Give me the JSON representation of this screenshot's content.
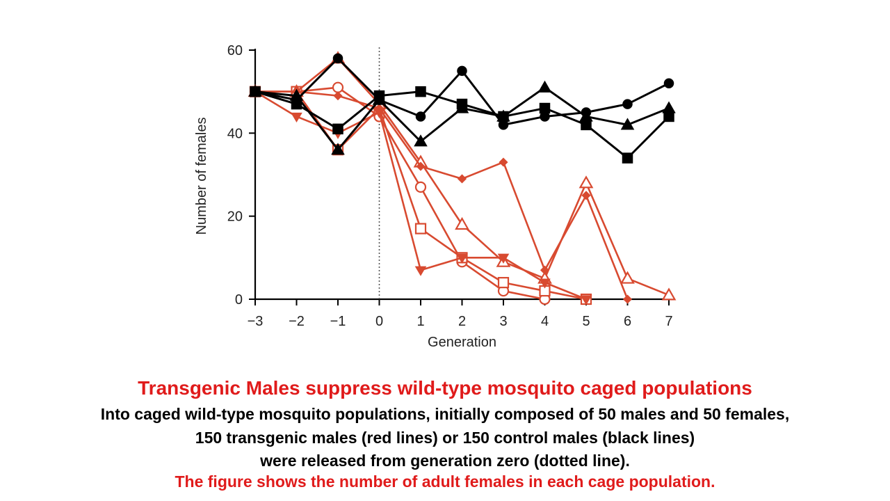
{
  "colors": {
    "treatment": "#d84a30",
    "control": "#000000",
    "highlight": "#e01b1b"
  },
  "caption": {
    "title": "Transgenic Males suppress wild-type mosquito caged populations",
    "line1": "Into caged wild-type mosquito populations, initially composed of 50 males and 50 females,",
    "line2": "150 transgenic males (red lines) or 150 control males (black lines)",
    "line3": "were released from generation zero (dotted line).",
    "line4": "The figure shows the number of adult females in each cage population."
  },
  "chart_data": {
    "type": "line",
    "xlabel": "Generation",
    "ylabel": "Number of females",
    "xlim": [
      -3,
      7
    ],
    "ylim": [
      0,
      60
    ],
    "xticks": [
      -3,
      -2,
      -1,
      0,
      1,
      2,
      3,
      4,
      5,
      6,
      7
    ],
    "xtick_labels": [
      "−3",
      "−2",
      "−1",
      "0",
      "1",
      "2",
      "3",
      "4",
      "5",
      "6",
      "7"
    ],
    "yticks": [
      0,
      20,
      40,
      60
    ],
    "release_marker_x": 0,
    "series": [
      {
        "name": "control-circle",
        "group": "control",
        "marker": "circle",
        "filled": true,
        "x": [
          -3,
          -2,
          -1,
          0,
          1,
          2,
          3,
          4,
          5,
          6,
          7
        ],
        "y": [
          50,
          48,
          58,
          48,
          44,
          55,
          42,
          44,
          45,
          47,
          52
        ]
      },
      {
        "name": "control-square",
        "group": "control",
        "marker": "square",
        "filled": true,
        "x": [
          -3,
          -2,
          -1,
          0,
          1,
          2,
          3,
          4,
          5,
          6,
          7
        ],
        "y": [
          50,
          47,
          41,
          49,
          50,
          47,
          44,
          46,
          42,
          34,
          44
        ]
      },
      {
        "name": "control-triangle",
        "group": "control",
        "marker": "triangle",
        "filled": true,
        "x": [
          -3,
          -2,
          -1,
          0,
          1,
          2,
          3,
          4,
          5,
          6,
          7
        ],
        "y": [
          50,
          49,
          36,
          48,
          38,
          46,
          44,
          51,
          44,
          42,
          46
        ]
      },
      {
        "name": "transgenic-circle",
        "group": "treatment",
        "marker": "circle",
        "filled": false,
        "x": [
          -3,
          -2,
          -1,
          0,
          1,
          2,
          3,
          4
        ],
        "y": [
          50,
          50,
          51,
          44,
          27,
          9,
          2,
          0
        ]
      },
      {
        "name": "transgenic-square",
        "group": "treatment",
        "marker": "square",
        "filled": false,
        "x": [
          -3,
          -2,
          -1,
          0,
          1,
          2,
          3,
          4,
          5
        ],
        "y": [
          50,
          50,
          36,
          46,
          17,
          10,
          4,
          2,
          0
        ]
      },
      {
        "name": "transgenic-triangle",
        "group": "treatment",
        "marker": "triangle",
        "filled": false,
        "x": [
          -3,
          -2,
          -1,
          0,
          1,
          2,
          3,
          4,
          5,
          6,
          7
        ],
        "y": [
          50,
          50,
          58,
          47,
          33,
          18,
          9,
          5,
          28,
          5,
          1
        ]
      },
      {
        "name": "transgenic-diamond",
        "group": "treatment",
        "marker": "diamond",
        "filled": true,
        "x": [
          -3,
          -2,
          -1,
          0,
          1,
          2,
          3,
          4,
          5,
          6
        ],
        "y": [
          50,
          50,
          49,
          46,
          32,
          29,
          33,
          7,
          25,
          0
        ]
      },
      {
        "name": "transgenic-down-triangle",
        "group": "treatment",
        "marker": "triangle-down",
        "filled": true,
        "x": [
          -3,
          -2,
          -1,
          0,
          1,
          2,
          3,
          4,
          5
        ],
        "y": [
          50,
          44,
          40,
          45,
          7,
          10,
          10,
          4,
          0
        ]
      }
    ]
  }
}
